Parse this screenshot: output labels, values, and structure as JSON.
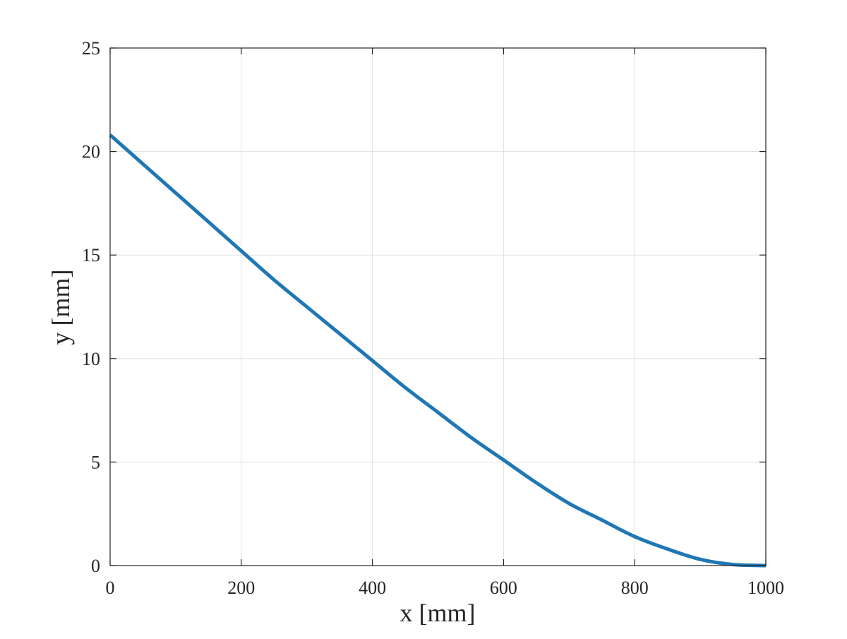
{
  "chart_data": {
    "type": "line",
    "xlabel": "x [mm]",
    "ylabel": "y [mm]",
    "xlim": [
      0,
      1000
    ],
    "ylim": [
      0,
      25
    ],
    "xticks": [
      0,
      200,
      400,
      600,
      800,
      1000
    ],
    "yticks": [
      0,
      5,
      10,
      15,
      20,
      25
    ],
    "grid": true,
    "box": true,
    "series": [
      {
        "color": "#1f77b4",
        "x": [
          0,
          50,
          100,
          150,
          200,
          250,
          300,
          350,
          400,
          450,
          500,
          550,
          600,
          650,
          700,
          750,
          800,
          850,
          900,
          950,
          1000
        ],
        "y": [
          20.8,
          19.4,
          18.0,
          16.6,
          15.2,
          13.8,
          12.5,
          11.2,
          9.9,
          8.6,
          7.4,
          6.2,
          5.1,
          4.0,
          3.0,
          2.2,
          1.4,
          0.8,
          0.3,
          0.05,
          0
        ]
      }
    ]
  }
}
